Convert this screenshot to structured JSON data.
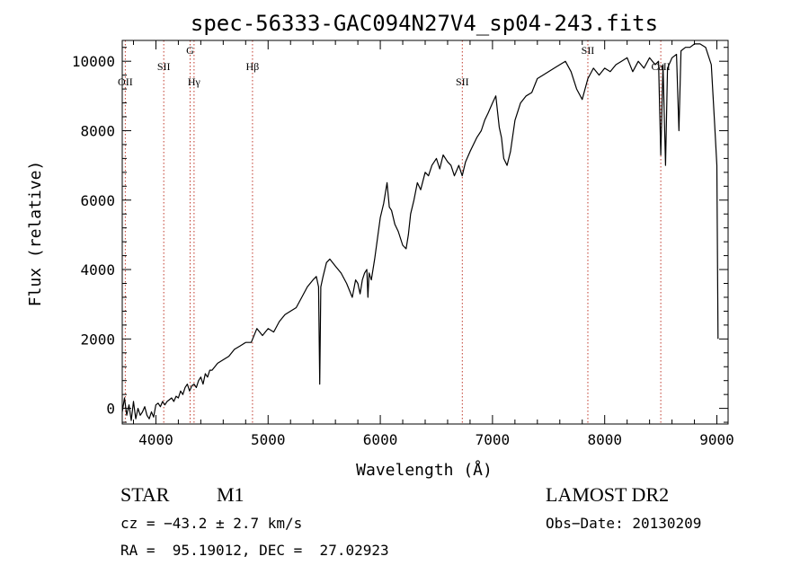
{
  "chart_data": {
    "type": "line",
    "title": "spec-56333-GAC094N27V4_sp04-243.fits",
    "xlabel": "Wavelength (Å)",
    "ylabel": "Flux (relative)",
    "xlim": [
      3700,
      9100
    ],
    "ylim": [
      -450,
      10600
    ],
    "xticks": [
      4000,
      5000,
      6000,
      7000,
      8000,
      9000
    ],
    "xtick_labels": [
      "4000",
      "5000",
      "6000",
      "7000",
      "8000",
      "9000"
    ],
    "yticks": [
      0,
      2000,
      4000,
      6000,
      8000,
      10000
    ],
    "ytick_labels": [
      "0",
      "2000",
      "4000",
      "6000",
      "8000",
      "10000"
    ],
    "grid": false,
    "legend": "none",
    "line_color": "#000000",
    "marker_color": "#c0392b",
    "lines": [
      {
        "label": "OII",
        "x": 3727
      },
      {
        "label": "SII",
        "x": 4070
      },
      {
        "label": "G",
        "x": 4305
      },
      {
        "label": "Hγ",
        "x": 4340
      },
      {
        "label": "Hβ",
        "x": 4861
      },
      {
        "label": "SII",
        "x": 6731
      },
      {
        "label": "SII",
        "x": 7850
      },
      {
        "label": "CaII",
        "x": 8500
      }
    ],
    "series": [
      {
        "x": [
          3700,
          3720,
          3740,
          3760,
          3780,
          3800,
          3820,
          3840,
          3860,
          3880,
          3900,
          3920,
          3940,
          3960,
          3980,
          4000,
          4020,
          4040,
          4060,
          4080,
          4100,
          4120,
          4140,
          4160,
          4180,
          4200,
          4220,
          4240,
          4260,
          4280,
          4300,
          4320,
          4340,
          4360,
          4380,
          4400,
          4420,
          4440,
          4460,
          4480,
          4500,
          4550,
          4600,
          4650,
          4700,
          4750,
          4800,
          4850,
          4900,
          4950,
          5000,
          5050,
          5100,
          5150,
          5200,
          5250,
          5300,
          5350,
          5400,
          5430,
          5450,
          5460,
          5470,
          5490,
          5520,
          5550,
          5600,
          5650,
          5700,
          5750,
          5780,
          5800,
          5820,
          5840,
          5860,
          5880,
          5890,
          5900,
          5920,
          5950,
          6000,
          6030,
          6060,
          6080,
          6100,
          6130,
          6160,
          6200,
          6230,
          6250,
          6270,
          6300,
          6330,
          6360,
          6400,
          6430,
          6460,
          6500,
          6530,
          6560,
          6600,
          6630,
          6660,
          6700,
          6730,
          6760,
          6800,
          6830,
          6860,
          6900,
          6930,
          6960,
          7000,
          7030,
          7060,
          7080,
          7100,
          7130,
          7160,
          7200,
          7250,
          7300,
          7350,
          7400,
          7450,
          7500,
          7550,
          7600,
          7650,
          7700,
          7750,
          7800,
          7850,
          7900,
          7950,
          8000,
          8050,
          8100,
          8150,
          8200,
          8250,
          8300,
          8350,
          8400,
          8450,
          8480,
          8500,
          8520,
          8542,
          8560,
          8600,
          8640,
          8662,
          8680,
          8720,
          8760,
          8800,
          8850,
          8900,
          8950,
          8980,
          9000,
          9010
        ],
        "y": [
          -100,
          300,
          -200,
          100,
          -350,
          200,
          -300,
          0,
          -200,
          -100,
          50,
          -200,
          -300,
          -100,
          -250,
          100,
          150,
          50,
          200,
          100,
          200,
          250,
          300,
          200,
          350,
          300,
          500,
          400,
          600,
          700,
          500,
          650,
          700,
          600,
          800,
          900,
          700,
          1000,
          900,
          1100,
          1100,
          1300,
          1400,
          1500,
          1700,
          1800,
          1900,
          1900,
          2300,
          2100,
          2300,
          2200,
          2500,
          2700,
          2800,
          2900,
          3200,
          3500,
          3700,
          3800,
          3500,
          700,
          3500,
          3800,
          4200,
          4300,
          4100,
          3900,
          3600,
          3200,
          3700,
          3600,
          3300,
          3700,
          3900,
          4000,
          3200,
          3900,
          3700,
          4300,
          5500,
          5900,
          6500,
          5800,
          5700,
          5300,
          5100,
          4700,
          4600,
          5000,
          5600,
          6000,
          6500,
          6300,
          6800,
          6700,
          7000,
          7200,
          6900,
          7300,
          7100,
          7000,
          6700,
          7000,
          6700,
          7100,
          7400,
          7600,
          7800,
          8000,
          8300,
          8500,
          8800,
          9000,
          8100,
          7800,
          7200,
          7000,
          7400,
          8300,
          8800,
          9000,
          9100,
          9500,
          9600,
          9700,
          9800,
          9900,
          10000,
          9700,
          9200,
          8900,
          9500,
          9800,
          9600,
          9800,
          9700,
          9900,
          10000,
          10100,
          9700,
          10000,
          9800,
          10100,
          9900,
          10000,
          7300,
          9900,
          7000,
          9800,
          10100,
          10200,
          8000,
          10300,
          10400,
          10400,
          10500,
          10500,
          10400,
          9900,
          8200,
          7000,
          2000
        ]
      }
    ]
  },
  "info": {
    "class": "STAR",
    "subclass": "M1",
    "survey": "LAMOST DR2",
    "cz": "cz = −43.2 ± 2.7 km/s",
    "obs_date": "Obs−Date: 20130209",
    "radec": "RA =  95.19012, DEC =  27.02923"
  }
}
